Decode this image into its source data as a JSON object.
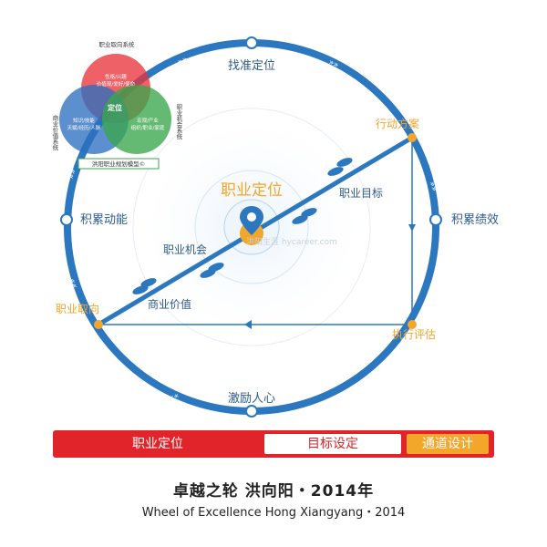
{
  "wheel": {
    "top_label": "找准定位",
    "right_label": "积累绩效",
    "bottom_label": "激励人心",
    "left_label": "积累动能",
    "center_label": "职业定位",
    "action_plan": "行动方案",
    "career_goal": "职业目标",
    "career_opportunity": "职业机会",
    "business_value": "商业价值",
    "career_orientation": "职业取向",
    "execution_evaluation": "执行评估",
    "watermark": "洪阳生涯 hycareer.com"
  },
  "venn": {
    "title_top": "职业取向系统",
    "title_left": "商业价值系统",
    "title_right": "职业机会系统",
    "red_text_1": "性格/兴趣",
    "red_text_2": "价值观/爱好/使命",
    "blue_text_1": "知识/技能",
    "blue_text_2": "天赋/经历/人脉",
    "green_text_1": "宏观/产业",
    "green_text_2": "组织/职业/家庭",
    "center_text": "定位",
    "model_caption": "洪阳职业规划模型©"
  },
  "bar": {
    "seg1": "职业定位",
    "seg2": "目标设定",
    "seg3": "通道设计"
  },
  "footer": {
    "title_cn": "卓越之轮  洪向阳・2014年",
    "title_en": "Wheel of Excellence   Hong Xiangyang・2014"
  },
  "colors": {
    "wheel_blue": "#2b78c0",
    "accent_orange": "#f2a62a",
    "red": "#e0242a",
    "venn_red": "#e8343c",
    "venn_blue": "#2d6fbf",
    "venn_green": "#3aa64b"
  },
  "icons": [
    "location-pin-icon",
    "footprints-icon"
  ]
}
